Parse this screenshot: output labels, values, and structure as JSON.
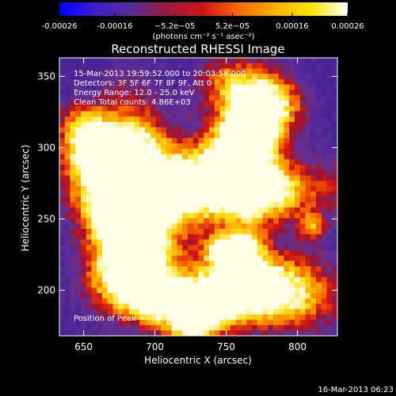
{
  "chart_data": {
    "type": "heatmap",
    "title": "Reconstructed RHESSI Image",
    "xlabel": "Heliocentric X (arcsec)",
    "ylabel": "Heliocentric Y (arcsec)",
    "xlim": [
      633,
      828
    ],
    "ylim": [
      168,
      363
    ],
    "x_ticks": [
      650,
      700,
      750,
      800
    ],
    "y_ticks": [
      200,
      250,
      300,
      350
    ],
    "colorbar": {
      "range": [
        -0.00026,
        0.00026
      ],
      "tick_values": [
        -0.00026,
        -0.00016,
        -5.2e-05,
        5.2e-05,
        0.00016,
        0.00026
      ],
      "tick_labels": [
        "-0.00026",
        "-0.00016",
        "−5.2e−05",
        "5.2e−05",
        "0.00016",
        "0.00026"
      ],
      "unit_label": "(photons cm⁻² s⁻¹ asec⁻²)",
      "colormap": "RHESSI (blue–purple–red–orange–yellow–white)",
      "stops": [
        "#0000ff",
        "#3b1ed0",
        "#5a2a9a",
        "#9a1a3a",
        "#d21414",
        "#ff6a00",
        "#ffb000",
        "#ffe600",
        "#ffffff"
      ]
    },
    "annotations": [
      "15-Mar-2013 19:59:52.000 to 20:03:58.000",
      "Detectors: 3F 5F 6F 7F 8F 9F, Att 0",
      "Energy Range: 12.0 - 25.0 keV",
      "Clean    Total counts: 4.86E+03",
      "Position of Peak = [820,211]"
    ],
    "peak": [
      820,
      211
    ],
    "grid": false,
    "background_color": "#000000"
  },
  "timestamp": "16-Mar-2013 06:23"
}
